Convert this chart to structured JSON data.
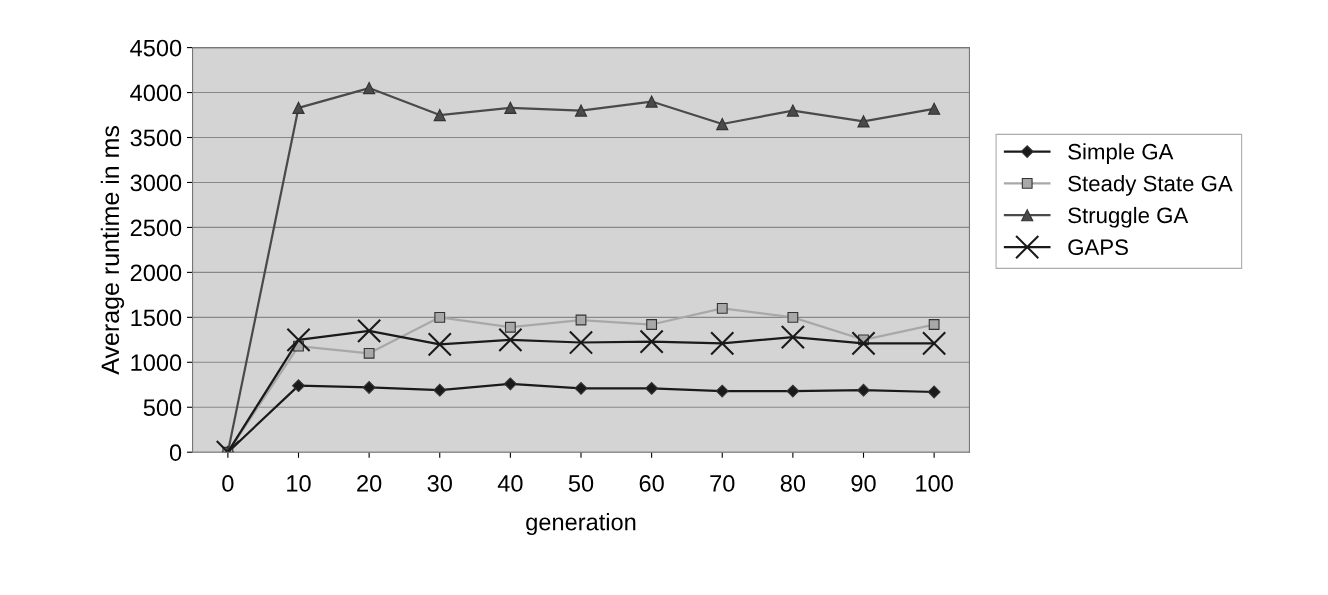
{
  "chart_data": {
    "type": "line",
    "xlabel": "generation",
    "ylabel": "Average runtime in ms",
    "categories": [
      "0",
      "10",
      "20",
      "30",
      "40",
      "50",
      "60",
      "70",
      "80",
      "90",
      "100"
    ],
    "series": [
      {
        "name": "Simple GA",
        "color": "#1a1a1a",
        "marker": "diamond",
        "values": [
          0,
          740,
          720,
          690,
          760,
          710,
          710,
          680,
          680,
          690,
          670
        ]
      },
      {
        "name": "Steady State GA",
        "color": "#a8a8a8",
        "marker": "square",
        "values": [
          0,
          1180,
          1100,
          1500,
          1390,
          1470,
          1420,
          1600,
          1500,
          1250,
          1420
        ]
      },
      {
        "name": "Struggle GA",
        "color": "#4a4a4a",
        "marker": "triangle",
        "values": [
          0,
          3830,
          4050,
          3750,
          3830,
          3800,
          3900,
          3650,
          3800,
          3680,
          3820
        ]
      },
      {
        "name": "GAPS",
        "color": "#1a1a1a",
        "marker": "cross",
        "values": [
          0,
          1250,
          1350,
          1200,
          1250,
          1220,
          1230,
          1210,
          1280,
          1210,
          1210
        ]
      }
    ],
    "ylim": [
      0,
      4500
    ],
    "yticks": [
      0,
      500,
      1000,
      1500,
      2000,
      2500,
      3000,
      3500,
      4000,
      4500
    ],
    "grid": "y",
    "legend": "right",
    "line_style": "solid"
  }
}
